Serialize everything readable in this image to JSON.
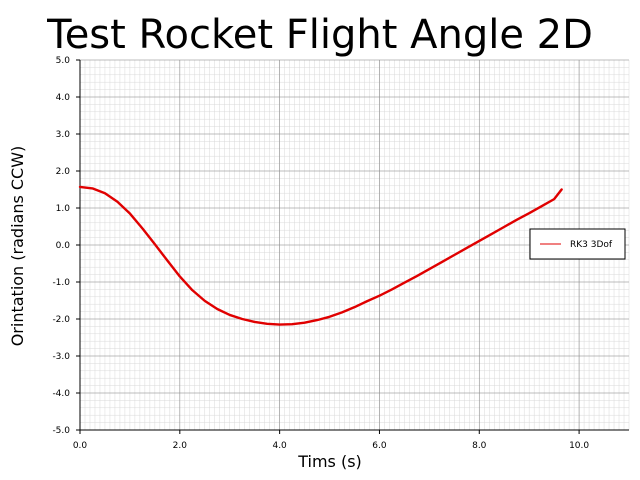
{
  "chart_data": {
    "type": "line",
    "title": "Test Rocket Flight Angle 2D",
    "xlabel": "Tims (s)",
    "ylabel": "Orintation (radians CCW)",
    "xlim": [
      0.0,
      11.0
    ],
    "ylim": [
      -5.0,
      5.0
    ],
    "x_ticks": [
      "0.0",
      "2.0",
      "4.0",
      "6.0",
      "8.0",
      "10.0"
    ],
    "y_ticks": [
      "5.0",
      "4.0",
      "3.0",
      "2.0",
      "1.0",
      "0.0",
      "-1.0",
      "-2.0",
      "-3.0",
      "-4.0",
      "-5.0"
    ],
    "grid": true,
    "legend_position": "right",
    "series": [
      {
        "name": "RK3 3Dof",
        "color": "#e00000",
        "x": [
          0.0,
          0.25,
          0.5,
          0.75,
          1.0,
          1.25,
          1.5,
          1.75,
          2.0,
          2.25,
          2.5,
          2.75,
          3.0,
          3.25,
          3.5,
          3.75,
          4.0,
          4.25,
          4.5,
          4.75,
          5.0,
          5.25,
          5.5,
          5.75,
          6.0,
          6.25,
          6.5,
          6.75,
          7.0,
          7.25,
          7.5,
          7.75,
          8.0,
          8.25,
          8.5,
          8.75,
          9.0,
          9.25,
          9.5,
          9.65
        ],
        "y": [
          1.57,
          1.53,
          1.4,
          1.17,
          0.85,
          0.45,
          0.02,
          -0.42,
          -0.85,
          -1.22,
          -1.51,
          -1.73,
          -1.89,
          -2.0,
          -2.08,
          -2.13,
          -2.15,
          -2.14,
          -2.1,
          -2.03,
          -1.94,
          -1.82,
          -1.68,
          -1.52,
          -1.37,
          -1.2,
          -1.02,
          -0.84,
          -0.65,
          -0.46,
          -0.27,
          -0.08,
          0.11,
          0.3,
          0.49,
          0.68,
          0.86,
          1.05,
          1.24,
          1.5
        ]
      }
    ]
  }
}
